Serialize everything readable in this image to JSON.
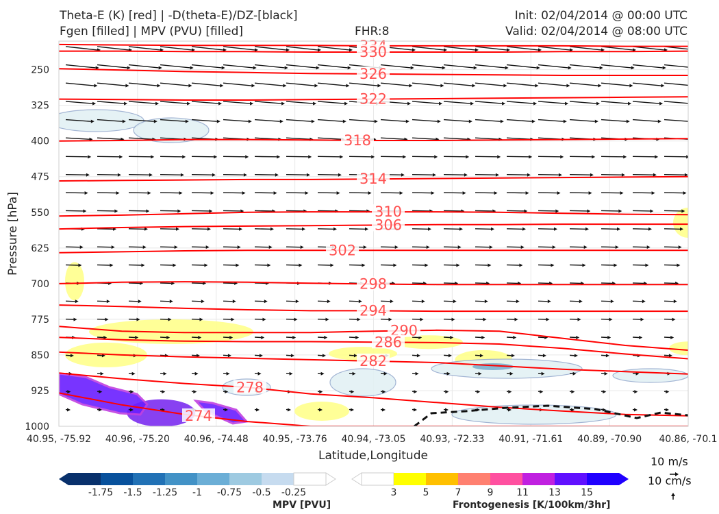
{
  "header": {
    "title_line1": "Theta-E (K) [red] | -D(theta-E)/DZ-[black]",
    "title_line2": "Fgen [filled] | MPV (PVU) [filled]",
    "fhr": "FHR:8",
    "init": "Init: 02/04/2014 @ 00:00 UTC",
    "valid": "Valid: 02/04/2014 @ 08:00 UTC"
  },
  "chart_data": {
    "type": "contour cross-section",
    "xlabel": "Latitude,Longitude",
    "ylabel": "Pressure [hPa]",
    "x_ticks": [
      "40.95, -75.92",
      "40.96, -75.20",
      "40.96, -74.48",
      "40.95, -73.76",
      "40.94, -73.05",
      "40.93, -72.33",
      "40.91, -71.61",
      "40.89, -70.90",
      "40.86, -70.1"
    ],
    "y_ticks": [
      250,
      325,
      400,
      475,
      550,
      625,
      700,
      775,
      850,
      925,
      1000
    ],
    "ylim": [
      1000,
      190
    ],
    "grid": true,
    "theta_e_contours": [
      {
        "label": "334",
        "p": [
          197,
          198,
          199,
          199,
          199,
          200,
          200,
          200,
          200,
          201,
          201
        ]
      },
      {
        "label": "330",
        "p": [
          211,
          211,
          212,
          212,
          213,
          213,
          213,
          213,
          212,
          212,
          211
        ]
      },
      {
        "label": "326",
        "p": [
          248,
          251,
          254,
          256,
          258,
          259,
          260,
          261,
          262,
          262,
          262
        ]
      },
      {
        "label": "322",
        "p": [
          312,
          313,
          314,
          314,
          313,
          312,
          311,
          310,
          309,
          308,
          307
        ]
      },
      {
        "label": "318",
        "p": [
          400,
          399,
          397,
          397,
          398,
          399,
          399,
          398,
          397,
          396,
          395
        ]
      },
      {
        "label": "314",
        "p": [
          484,
          483,
          482,
          481,
          481,
          480,
          479,
          478,
          477,
          476,
          475
        ]
      },
      {
        "label": "310",
        "p": [
          558,
          556,
          553,
          550,
          549,
          549,
          549,
          550,
          552,
          554,
          555
        ]
      },
      {
        "label": "306",
        "p": [
          585,
          582,
          580,
          579,
          578,
          577,
          576,
          576,
          575,
          575,
          575
        ]
      },
      {
        "label": "302",
        "p": [
          635,
          633,
          631,
          630,
          630,
          630,
          630,
          630,
          630,
          630,
          630
        ]
      },
      {
        "label": "298",
        "p": [
          700,
          697,
          696,
          697,
          699,
          701,
          702,
          702,
          702,
          702,
          702
        ]
      },
      {
        "label": "294",
        "p": [
          745,
          748,
          752,
          755,
          757,
          757,
          758,
          758,
          758,
          758,
          758
        ]
      },
      {
        "label": "290",
        "p": [
          790,
          800,
          803,
          803,
          803,
          800,
          798,
          800,
          815,
          830,
          840
        ]
      },
      {
        "label": "286",
        "p": [
          813,
          818,
          821,
          822,
          822,
          823,
          824,
          827,
          836,
          848,
          858
        ]
      },
      {
        "label": "282",
        "p": [
          844,
          850,
          854,
          857,
          860,
          863,
          866,
          873,
          880,
          885,
          890
        ]
      },
      {
        "label": "278",
        "p": [
          888,
          900,
          910,
          918,
          932,
          940,
          950,
          960,
          968,
          975,
          978
        ]
      },
      {
        "label": "274",
        "p": [
          930,
          955,
          975,
          990,
          1000,
          1000,
          1000,
          1000,
          1000,
          1000,
          1000
        ]
      }
    ],
    "frontogenesis_areas_hPa_lat": [
      {
        "center_x_index": 0.6,
        "center_p": 850,
        "value": 3
      },
      {
        "center_x_index": 4.7,
        "center_p": 823,
        "value": 3
      },
      {
        "center_x_index": 5.4,
        "center_p": 860,
        "value": 3
      },
      {
        "center_x_index": 8.0,
        "center_p": 836,
        "value": 3
      },
      {
        "center_x_index": 8.0,
        "center_p": 572,
        "value": 3
      },
      {
        "center_x_index": 0.2,
        "center_p": 695,
        "value": 3
      },
      {
        "center_x_index": 1.3,
        "center_p": 972,
        "value": 13
      }
    ],
    "mpv_levels": [
      -1.75,
      -1.5,
      -1.25,
      -1.0,
      -0.75,
      -0.5,
      -0.25
    ],
    "fgen_levels": [
      3,
      5,
      7,
      9,
      11,
      13,
      15
    ],
    "mpv_colorbar_title": "MPV [PVU]",
    "fgen_colorbar_title": "Frontogenesis [K/100km/3hr]",
    "vector_refs": [
      "10 m/s",
      "10 cm/s"
    ]
  },
  "colors": {
    "theta_e": "#ff0000",
    "theta_e_label": "#ff5050",
    "mpv": [
      "#08306b",
      "#08519c",
      "#2171b5",
      "#4292c6",
      "#6baed6",
      "#9ecae1",
      "#c6dbef",
      "#ffffff"
    ],
    "fgen": [
      "#ffffff",
      "#ffff00",
      "#ffc000",
      "#ff8070",
      "#ff50a0",
      "#c020e0",
      "#6010ff",
      "#2000ff"
    ]
  }
}
